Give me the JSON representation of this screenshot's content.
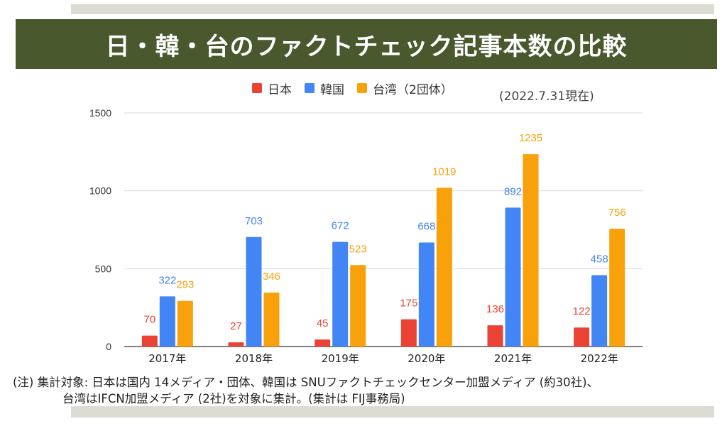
{
  "title": "日・韓・台のファクトチェック記事本数の比較",
  "as_of": "(2022.7.31現在)",
  "colors": {
    "title_bg": "#49582d",
    "japan": "#ea4335",
    "korea": "#4285f4",
    "taiwan": "#f9a10a",
    "grid": "#d9d9d9"
  },
  "chart_data": {
    "type": "bar",
    "categories": [
      "2017年",
      "2018年",
      "2019年",
      "2020年",
      "2021年",
      "2022年"
    ],
    "series": [
      {
        "name": "日本",
        "color": "#ea4335",
        "values": [
          70,
          27,
          45,
          175,
          136,
          122
        ]
      },
      {
        "name": "韓国",
        "color": "#4285f4",
        "values": [
          322,
          703,
          672,
          668,
          892,
          458
        ]
      },
      {
        "name": "台湾（2団体）",
        "color": "#f9a10a",
        "values": [
          293,
          346,
          523,
          1019,
          1235,
          756
        ]
      }
    ],
    "ylim": [
      0,
      1500
    ],
    "yticks": [
      0,
      500,
      1000,
      1500
    ],
    "grid": true,
    "legend": "top",
    "xlabel": "",
    "ylabel": ""
  },
  "footnote": {
    "line1": "(注) 集計対象: 日本は国内 14メディア・団体、韓国は SNUファクトチェックセンター加盟メディア (約30社)、",
    "line2": "台湾はIFCN加盟メディア (2社)を対象に集計。(集計は FIJ事務局)"
  }
}
